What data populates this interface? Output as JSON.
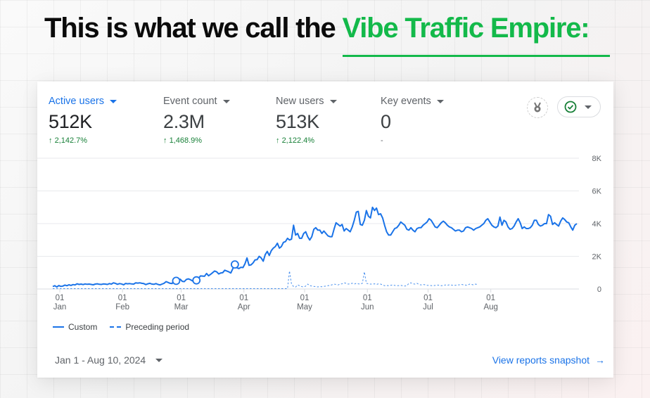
{
  "headline": {
    "prefix": "This is what we call the ",
    "accent": "Vibe Traffic Empire:",
    "accent_color": "#13b94a"
  },
  "metrics": [
    {
      "label": "Active users",
      "value": "512K",
      "change": "2,142.7%",
      "direction": "up",
      "active": true
    },
    {
      "label": "Event count",
      "value": "2.3M",
      "change": "1,468.9%",
      "direction": "up",
      "active": false
    },
    {
      "label": "New users",
      "value": "513K",
      "change": "2,122.4%",
      "direction": "up",
      "active": false
    },
    {
      "label": "Key events",
      "value": "0",
      "change": "-",
      "direction": "none",
      "active": false
    }
  ],
  "icons": {
    "insights": "medal-icon",
    "status": "check-circle-icon"
  },
  "legend": {
    "custom": "Custom",
    "preceding": "Preceding period"
  },
  "footer": {
    "date_range": "Jan 1 - Aug 10, 2024",
    "view_link": "View reports snapshot",
    "arrow": "→"
  },
  "colors": {
    "primary": "#1a73e8",
    "positive": "#188038",
    "grid": "#e8eaed"
  },
  "chart_data": {
    "type": "line",
    "title": "Active users",
    "xlabel": "",
    "ylabel": "",
    "ylim": [
      0,
      8000
    ],
    "y_ticks": [
      "0",
      "2K",
      "4K",
      "6K",
      "8K"
    ],
    "y_tick_values": [
      0,
      2000,
      4000,
      6000,
      8000
    ],
    "x_ticks": [
      {
        "day": "01",
        "month": "Jan",
        "index": 0
      },
      {
        "day": "01",
        "month": "Feb",
        "index": 31
      },
      {
        "day": "01",
        "month": "Mar",
        "index": 60
      },
      {
        "day": "01",
        "month": "Apr",
        "index": 91
      },
      {
        "day": "01",
        "month": "May",
        "index": 121
      },
      {
        "day": "01",
        "month": "Jun",
        "index": 152
      },
      {
        "day": "01",
        "month": "Jul",
        "index": 182
      },
      {
        "day": "01",
        "month": "Aug",
        "index": 213
      }
    ],
    "grid": true,
    "legend_position": "bottom-left",
    "series": [
      {
        "name": "Custom",
        "style": "solid",
        "values": [
          150,
          200,
          120,
          210,
          160,
          180,
          240,
          200,
          260,
          220,
          270,
          250,
          320,
          280,
          300,
          270,
          310,
          290,
          300,
          280,
          260,
          300,
          320,
          290,
          280,
          310,
          300,
          280,
          330,
          300,
          380,
          340,
          290,
          330,
          310,
          260,
          340,
          320,
          330,
          310,
          300,
          380,
          360,
          380,
          350,
          330,
          270,
          320,
          350,
          300,
          290,
          330,
          280,
          250,
          300,
          350,
          450,
          400,
          350,
          330,
          550,
          500,
          420,
          600,
          470,
          450,
          580,
          620,
          570,
          500,
          420,
          530,
          650,
          800,
          790,
          780,
          950,
          810,
          900,
          1000,
          1100,
          1050,
          920,
          980,
          1000,
          1150,
          1100,
          1050,
          980,
          1250,
          1500,
          1300,
          1250,
          1330,
          1310,
          1550,
          1900,
          1450,
          1480,
          1600,
          1780,
          1800,
          2000,
          1900,
          1700,
          2100,
          2300,
          2050,
          2350,
          2500,
          2600,
          2800,
          2500,
          2600,
          2850,
          2900,
          3100,
          3000,
          3050,
          3900,
          3300,
          3400,
          3100,
          3100,
          3400,
          3500,
          3200,
          3000,
          3200,
          3650,
          3750,
          3600,
          3600,
          3400,
          3550,
          3400,
          3250,
          3200,
          3200,
          3650,
          4050,
          3950,
          3850,
          3950,
          3550,
          3700,
          3600,
          3500,
          3800,
          4200,
          4700,
          4750,
          3950,
          3900,
          4200,
          4800,
          4450,
          4350,
          5000,
          4800,
          4950,
          4550,
          4600,
          4350,
          3900,
          3500,
          3300,
          3300,
          3500,
          3700,
          3750,
          3900,
          4100,
          4000,
          3900,
          3650,
          3600,
          3750,
          3600,
          3500,
          3700,
          3750,
          3750,
          3900,
          4000,
          4100,
          4300,
          4200,
          4000,
          3800,
          3750,
          3900,
          4050,
          4150,
          4050,
          3900,
          3800,
          3750,
          3650,
          3550,
          3600,
          3600,
          3500,
          3550,
          3750,
          3800,
          3750,
          3700,
          3600,
          3700,
          3750,
          3800,
          3900,
          4000,
          4200,
          4300,
          4100,
          3900,
          3800,
          3750,
          3850,
          4400,
          3900,
          4200,
          4100,
          3800,
          3650,
          3700,
          3850,
          4100,
          4300,
          4050,
          3700,
          3800,
          3700,
          3700,
          3750,
          3900,
          4200,
          4200,
          3950,
          3850,
          3900,
          4000,
          4000,
          4550,
          4450,
          3950,
          4050,
          3950,
          3850,
          4150,
          4350,
          4250,
          4100,
          4050,
          3800,
          3600,
          3900,
          4000
        ],
        "markers": [
          {
            "index": 61,
            "type": "annotation"
          },
          {
            "index": 71,
            "type": "annotation"
          },
          {
            "index": 90,
            "type": "annotation"
          }
        ]
      },
      {
        "name": "Preceding period",
        "style": "dashed",
        "values": [
          20,
          20,
          20,
          20,
          20,
          20,
          20,
          20,
          20,
          20,
          20,
          20,
          20,
          20,
          20,
          20,
          20,
          20,
          20,
          20,
          20,
          20,
          20,
          20,
          20,
          20,
          20,
          20,
          20,
          20,
          20,
          20,
          20,
          20,
          20,
          20,
          20,
          20,
          20,
          20,
          20,
          20,
          20,
          20,
          20,
          20,
          20,
          20,
          20,
          20,
          20,
          20,
          20,
          20,
          20,
          20,
          20,
          20,
          20,
          20,
          20,
          20,
          20,
          20,
          20,
          20,
          20,
          20,
          20,
          20,
          20,
          20,
          20,
          20,
          20,
          20,
          20,
          20,
          20,
          20,
          20,
          20,
          20,
          20,
          20,
          20,
          20,
          20,
          20,
          20,
          20,
          20,
          20,
          20,
          20,
          20,
          20,
          20,
          20,
          20,
          20,
          20,
          20,
          20,
          20,
          20,
          20,
          20,
          20,
          20,
          20,
          20,
          20,
          20,
          20,
          20,
          20,
          1100,
          300,
          150,
          120,
          250,
          200,
          150,
          120,
          180,
          300,
          200,
          180,
          160,
          150,
          130,
          150,
          140,
          160,
          180,
          200,
          220,
          260,
          300,
          280,
          250,
          300,
          320,
          380,
          350,
          300,
          320,
          350,
          300,
          350,
          320,
          300,
          350,
          1050,
          350,
          320,
          300,
          300,
          320,
          280,
          320,
          300,
          250,
          200,
          220,
          200,
          230,
          250,
          220,
          200,
          210,
          220,
          200,
          180,
          200,
          350,
          380,
          320,
          300,
          350,
          280,
          250,
          280,
          260,
          230,
          220,
          210,
          200,
          220,
          240,
          230,
          200,
          210,
          250,
          230,
          260,
          240,
          220,
          230,
          250,
          260,
          280,
          260,
          240,
          230,
          300,
          280,
          250,
          300,
          260
        ],
        "peaks_note": "spikes near mid-April and mid-June"
      }
    ]
  }
}
